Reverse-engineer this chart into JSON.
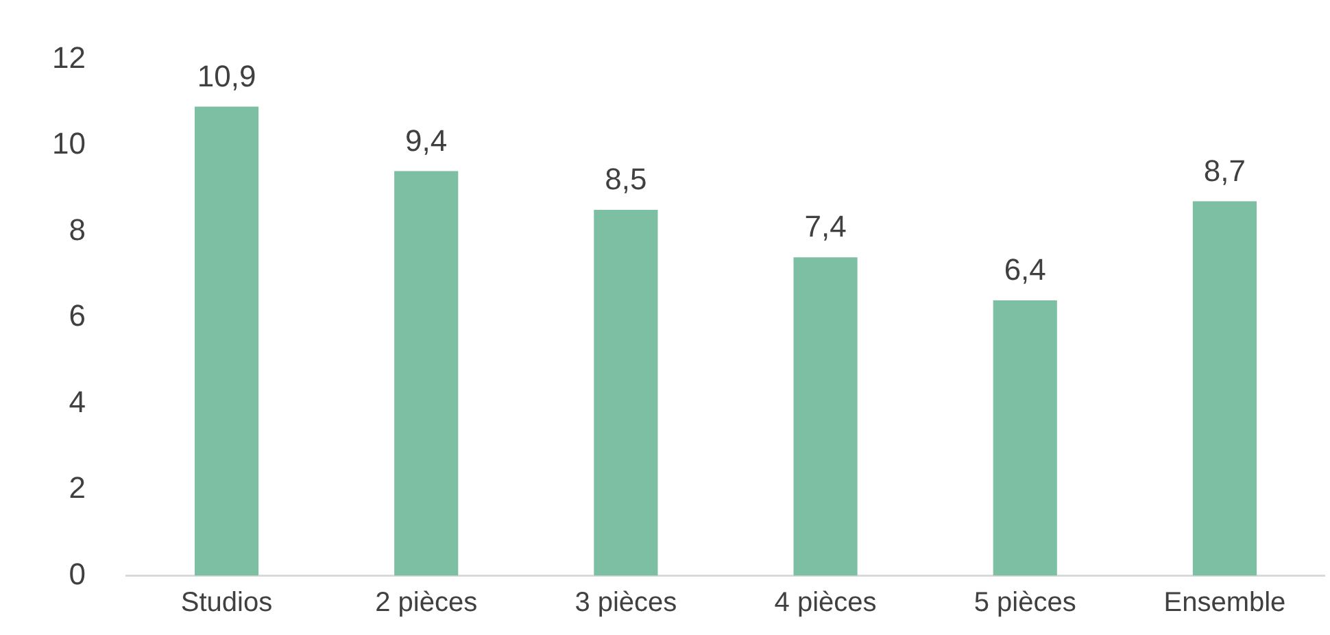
{
  "chart_data": {
    "type": "bar",
    "categories": [
      "Studios",
      "2 pièces",
      "3 pièces",
      "4 pièces",
      "5 pièces",
      "Ensemble"
    ],
    "values": [
      10.9,
      9.4,
      8.5,
      7.4,
      6.4,
      8.7
    ],
    "value_labels": [
      "10,9",
      "9,4",
      "8,5",
      "7,4",
      "6,4",
      "8,7"
    ],
    "color": "#7dbfa3",
    "ylim": [
      0,
      12
    ],
    "yticks": [
      0,
      2,
      4,
      6,
      8,
      10,
      12
    ],
    "grid": false,
    "legend": false
  }
}
